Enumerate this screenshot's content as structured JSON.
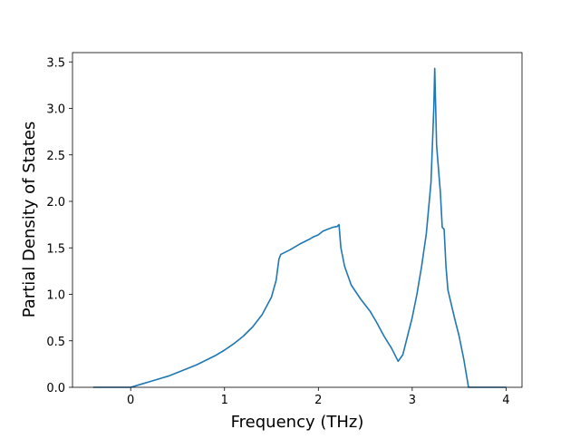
{
  "chart_data": {
    "type": "line",
    "xlabel": "Frequency (THz)",
    "ylabel": "Partial Density of States",
    "x": [
      -0.4,
      0,
      0.1,
      0.2,
      0.3,
      0.4,
      0.5,
      0.6,
      0.7,
      0.8,
      0.9,
      1.0,
      1.1,
      1.2,
      1.3,
      1.4,
      1.5,
      1.55,
      1.58,
      1.6,
      1.7,
      1.8,
      1.9,
      1.95,
      2.0,
      2.05,
      2.1,
      2.15,
      2.2,
      2.22,
      2.24,
      2.28,
      2.35,
      2.45,
      2.55,
      2.62,
      2.7,
      2.78,
      2.85,
      2.9,
      2.95,
      3.0,
      3.05,
      3.1,
      3.15,
      3.2,
      3.23,
      3.24,
      3.26,
      3.3,
      3.32,
      3.34,
      3.36,
      3.38,
      3.45,
      3.5,
      3.55,
      3.6,
      4.0
    ],
    "series": [
      {
        "color": "#1f77b4",
        "values": [
          0,
          0,
          0.03,
          0.06,
          0.09,
          0.12,
          0.16,
          0.2,
          0.24,
          0.29,
          0.34,
          0.4,
          0.47,
          0.55,
          0.65,
          0.78,
          0.97,
          1.15,
          1.38,
          1.43,
          1.48,
          1.54,
          1.59,
          1.62,
          1.64,
          1.68,
          1.7,
          1.72,
          1.73,
          1.75,
          1.5,
          1.3,
          1.1,
          0.95,
          0.82,
          0.7,
          0.55,
          0.42,
          0.28,
          0.35,
          0.55,
          0.75,
          1.0,
          1.3,
          1.65,
          2.2,
          3.0,
          3.43,
          2.6,
          2.1,
          1.72,
          1.7,
          1.3,
          1.05,
          0.75,
          0.55,
          0.3,
          0,
          0
        ]
      }
    ],
    "xlim": [
      -0.62,
      4.17
    ],
    "ylim": [
      0,
      3.6
    ],
    "xticks": [
      0,
      1,
      2,
      3,
      4
    ],
    "yticks": [
      {
        "value": 0,
        "label": "0.0"
      },
      {
        "value": 0.5,
        "label": "0.5"
      },
      {
        "value": 1,
        "label": "1.0"
      },
      {
        "value": 1.5,
        "label": "1.5"
      },
      {
        "value": 2,
        "label": "2.0"
      },
      {
        "value": 2.5,
        "label": "2.5"
      },
      {
        "value": 3,
        "label": "3.0"
      },
      {
        "value": 3.5,
        "label": "3.5"
      }
    ]
  }
}
